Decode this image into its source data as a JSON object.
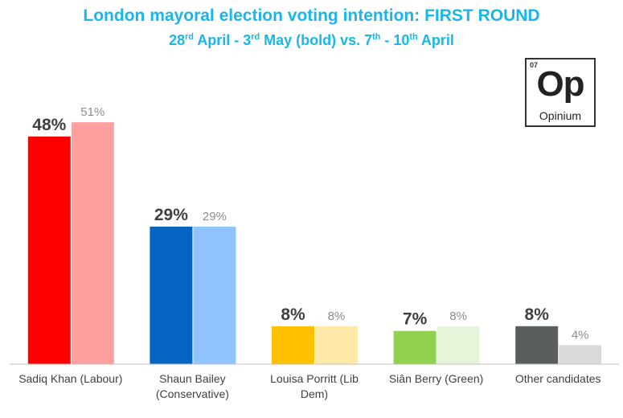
{
  "title_parts": {
    "main": "London mayoral election voting intention: FIRST ROUND",
    "sub_a": "28",
    "sub_a_sup": "rd",
    "sub_b": " April - 3",
    "sub_b_sup": "rd",
    "sub_c": " May (bold) vs. 7",
    "sub_c_sup": "th",
    "sub_d": " - 10",
    "sub_d_sup": "th",
    "sub_e": " April"
  },
  "logo": {
    "number": "07",
    "symbol": "Op",
    "name": "Opinium"
  },
  "chart_data": {
    "type": "bar",
    "title": "London mayoral election voting intention: FIRST ROUND",
    "subtitle": "28rd April - 3rd May (bold) vs. 7th - 10th April",
    "categories": [
      [
        "Sadiq Khan (Labour)"
      ],
      [
        "Shaun Bailey",
        "(Conservative)"
      ],
      [
        "Louisa Porritt (Lib",
        "Dem)"
      ],
      [
        "Siân Berry (Green)"
      ],
      [
        "Other candidates"
      ]
    ],
    "series": [
      {
        "values": [
          48,
          29,
          8,
          7,
          8
        ],
        "colors": [
          "#ff0000",
          "#0563c1",
          "#ffc000",
          "#92d050",
          "#595f5c"
        ]
      },
      {
        "values": [
          51,
          29,
          8,
          8,
          4
        ],
        "colors": [
          "#ff9e9e",
          "#8fc4ff",
          "#ffe9a8",
          "#e6f4d9",
          "#d9d9d9"
        ]
      }
    ],
    "data_labels": [
      [
        "48%",
        "29%",
        "8%",
        "7%",
        "8%"
      ],
      [
        "51%",
        "29%",
        "8%",
        "8%",
        "4%"
      ]
    ],
    "ylim": [
      0,
      55
    ],
    "grid": false,
    "legend": "none"
  }
}
